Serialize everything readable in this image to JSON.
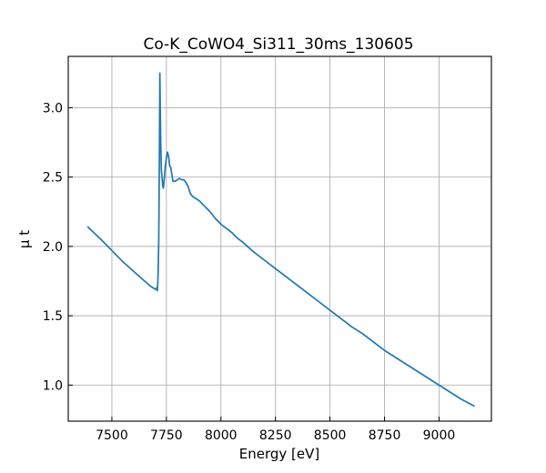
{
  "chart_data": {
    "type": "line",
    "title": "Co-K_CoWO4_Si311_30ms_130605",
    "xlabel": "Energy [eV]",
    "ylabel": "μ t",
    "xlim": [
      7300,
      9240
    ],
    "ylim": [
      0.74,
      3.37
    ],
    "xticks": [
      7500,
      7750,
      8000,
      8250,
      8500,
      8750,
      9000
    ],
    "xtick_labels": [
      "7500",
      "7750",
      "8000",
      "8250",
      "8500",
      "8750",
      "9000"
    ],
    "yticks": [
      1.0,
      1.5,
      2.0,
      2.5,
      3.0
    ],
    "ytick_labels": [
      "1.0",
      "1.5",
      "2.0",
      "2.5",
      "3.0"
    ],
    "grid": true,
    "series": [
      {
        "color": "#1f77b4",
        "x": [
          7390,
          7450,
          7500,
          7550,
          7600,
          7650,
          7680,
          7695,
          7700,
          7705,
          7708,
          7710,
          7712,
          7715,
          7718,
          7720,
          7722,
          7724,
          7727,
          7730,
          7733,
          7736,
          7740,
          7745,
          7750,
          7755,
          7760,
          7765,
          7770,
          7775,
          7780,
          7790,
          7800,
          7810,
          7820,
          7830,
          7840,
          7850,
          7860,
          7870,
          7880,
          7900,
          7925,
          7950,
          7975,
          8000,
          8025,
          8050,
          8075,
          8100,
          8150,
          8200,
          8250,
          8300,
          8350,
          8400,
          8450,
          8500,
          8550,
          8600,
          8650,
          8700,
          8750,
          8800,
          8850,
          8900,
          8950,
          9000,
          9050,
          9100,
          9160
        ],
        "y": [
          2.14,
          2.05,
          1.97,
          1.89,
          1.82,
          1.75,
          1.71,
          1.695,
          1.69,
          1.7,
          1.68,
          1.72,
          1.8,
          2.05,
          2.7,
          3.25,
          2.98,
          2.75,
          2.55,
          2.5,
          2.44,
          2.42,
          2.48,
          2.58,
          2.64,
          2.68,
          2.65,
          2.58,
          2.57,
          2.52,
          2.47,
          2.47,
          2.48,
          2.49,
          2.48,
          2.48,
          2.46,
          2.43,
          2.38,
          2.36,
          2.35,
          2.33,
          2.29,
          2.25,
          2.2,
          2.16,
          2.13,
          2.1,
          2.06,
          2.03,
          1.96,
          1.9,
          1.84,
          1.78,
          1.72,
          1.66,
          1.6,
          1.54,
          1.48,
          1.42,
          1.37,
          1.31,
          1.25,
          1.2,
          1.15,
          1.1,
          1.05,
          1.0,
          0.95,
          0.9,
          0.85
        ]
      }
    ]
  }
}
